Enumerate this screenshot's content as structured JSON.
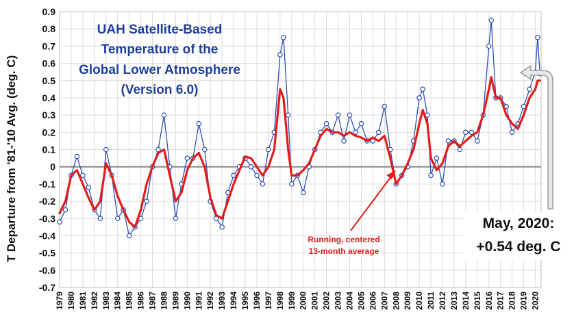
{
  "chart_data": {
    "type": "line",
    "title_lines": [
      "UAH Satellite-Based",
      "Temperature of the",
      "Global Lower Atmosphere",
      "(Version 6.0)"
    ],
    "ylabel": "T Departure from '81-'10 Avg. (deg. C)",
    "xlabel": "",
    "ylim": [
      -0.7,
      0.9
    ],
    "y_ticks": [
      "-0.7",
      "-0.6",
      "-0.5",
      "-0.4",
      "-0.3",
      "-0.2",
      "-0.1",
      "0",
      "0.1",
      "0.2",
      "0.3",
      "0.4",
      "0.5",
      "0.6",
      "0.7",
      "0.8",
      "0.9"
    ],
    "x_ticks": [
      "1979",
      "1980",
      "1981",
      "1982",
      "1983",
      "1984",
      "1985",
      "1986",
      "1987",
      "1988",
      "1989",
      "1990",
      "1991",
      "1992",
      "1993",
      "1994",
      "1995",
      "1996",
      "1997",
      "1998",
      "1999",
      "2000",
      "2001",
      "2002",
      "2003",
      "2004",
      "2005",
      "2006",
      "2007",
      "2008",
      "2009",
      "2010",
      "2011",
      "2012",
      "2013",
      "2014",
      "2015",
      "2016",
      "2017",
      "2018",
      "2019",
      "2020"
    ],
    "grid": true,
    "series": [
      {
        "name": "",
        "color": "#2a4fb5",
        "marker": "open-circle",
        "x": [
          1979.0,
          1979.5,
          1980.0,
          1980.5,
          1981.0,
          1981.5,
          1982.0,
          1982.5,
          1983.0,
          1983.5,
          1984.0,
          1984.5,
          1985.0,
          1985.5,
          1986.0,
          1986.5,
          1987.0,
          1987.5,
          1988.0,
          1988.5,
          1989.0,
          1989.5,
          1990.0,
          1990.5,
          1991.0,
          1991.5,
          1992.0,
          1992.5,
          1993.0,
          1993.5,
          1994.0,
          1994.5,
          1995.0,
          1995.5,
          1996.0,
          1996.5,
          1997.0,
          1997.5,
          1998.0,
          1998.3,
          1998.7,
          1999.0,
          1999.5,
          2000.0,
          2000.5,
          2001.0,
          2001.5,
          2002.0,
          2002.5,
          2003.0,
          2003.5,
          2004.0,
          2004.5,
          2005.0,
          2005.5,
          2006.0,
          2006.5,
          2007.0,
          2007.5,
          2008.0,
          2008.5,
          2009.0,
          2009.5,
          2010.0,
          2010.3,
          2010.7,
          2011.0,
          2011.5,
          2012.0,
          2012.5,
          2013.0,
          2013.5,
          2014.0,
          2014.5,
          2015.0,
          2015.5,
          2016.0,
          2016.2,
          2016.6,
          2017.0,
          2017.5,
          2018.0,
          2018.5,
          2019.0,
          2019.5,
          2020.0,
          2020.2,
          2020.4
        ],
        "y": [
          -0.32,
          -0.25,
          -0.05,
          0.06,
          -0.05,
          -0.12,
          -0.25,
          -0.3,
          0.1,
          -0.05,
          -0.3,
          -0.25,
          -0.4,
          -0.35,
          -0.3,
          -0.2,
          0.0,
          0.1,
          0.3,
          0.0,
          -0.3,
          -0.1,
          0.05,
          0.05,
          0.25,
          0.1,
          -0.2,
          -0.3,
          -0.35,
          -0.15,
          -0.05,
          0.0,
          0.05,
          0.0,
          -0.05,
          -0.1,
          0.1,
          0.2,
          0.65,
          0.75,
          0.3,
          -0.1,
          -0.05,
          -0.15,
          0.0,
          0.1,
          0.2,
          0.25,
          0.2,
          0.3,
          0.15,
          0.3,
          0.2,
          0.25,
          0.15,
          0.15,
          0.2,
          0.35,
          0.1,
          -0.1,
          -0.05,
          0.0,
          0.15,
          0.4,
          0.45,
          0.3,
          -0.05,
          0.05,
          -0.1,
          0.15,
          0.15,
          0.1,
          0.2,
          0.2,
          0.15,
          0.3,
          0.7,
          0.85,
          0.4,
          0.4,
          0.35,
          0.2,
          0.25,
          0.35,
          0.45,
          0.55,
          0.75,
          0.54
        ]
      },
      {
        "name": "Running, centered 13-month average",
        "color": "#e21b1b",
        "x": [
          1979.0,
          1979.5,
          1980.0,
          1980.5,
          1981.0,
          1981.5,
          1982.0,
          1982.5,
          1983.0,
          1983.5,
          1984.0,
          1984.5,
          1985.0,
          1985.5,
          1986.0,
          1986.5,
          1987.0,
          1987.5,
          1988.0,
          1988.5,
          1989.0,
          1989.5,
          1990.0,
          1990.5,
          1991.0,
          1991.5,
          1992.0,
          1992.5,
          1993.0,
          1993.5,
          1994.0,
          1994.5,
          1995.0,
          1995.5,
          1996.0,
          1996.5,
          1997.0,
          1997.5,
          1998.0,
          1998.3,
          1998.7,
          1999.0,
          1999.5,
          2000.0,
          2000.5,
          2001.0,
          2001.5,
          2002.0,
          2002.5,
          2003.0,
          2003.5,
          2004.0,
          2004.5,
          2005.0,
          2005.5,
          2006.0,
          2006.5,
          2007.0,
          2007.5,
          2008.0,
          2008.5,
          2009.0,
          2009.5,
          2010.0,
          2010.3,
          2010.7,
          2011.0,
          2011.5,
          2012.0,
          2012.5,
          2013.0,
          2013.5,
          2014.0,
          2014.5,
          2015.0,
          2015.5,
          2016.0,
          2016.2,
          2016.6,
          2017.0,
          2017.5,
          2018.0,
          2018.5,
          2019.0,
          2019.5,
          2020.0,
          2020.2,
          2020.4
        ],
        "y": [
          -0.27,
          -0.2,
          -0.05,
          -0.02,
          -0.1,
          -0.18,
          -0.25,
          -0.2,
          0.02,
          -0.05,
          -0.17,
          -0.25,
          -0.32,
          -0.35,
          -0.25,
          -0.1,
          0.0,
          0.08,
          0.1,
          -0.05,
          -0.2,
          -0.15,
          -0.02,
          0.05,
          0.08,
          0.0,
          -0.18,
          -0.28,
          -0.3,
          -0.2,
          -0.1,
          -0.02,
          0.06,
          0.05,
          0.0,
          -0.05,
          0.0,
          0.1,
          0.45,
          0.4,
          0.1,
          -0.05,
          -0.05,
          -0.02,
          0.02,
          0.1,
          0.18,
          0.22,
          0.2,
          0.2,
          0.18,
          0.2,
          0.18,
          0.17,
          0.15,
          0.17,
          0.15,
          0.18,
          0.05,
          -0.1,
          -0.05,
          0.02,
          0.1,
          0.25,
          0.33,
          0.25,
          0.05,
          -0.02,
          0.02,
          0.12,
          0.15,
          0.12,
          0.15,
          0.18,
          0.2,
          0.3,
          0.45,
          0.52,
          0.4,
          0.4,
          0.3,
          0.25,
          0.22,
          0.3,
          0.4,
          0.45,
          0.5,
          0.5
        ]
      }
    ],
    "annotations": {
      "running_note": [
        "Running, centered",
        "13-month average"
      ],
      "callout": [
        "May, 2020:",
        "+0.54 deg. C"
      ]
    }
  }
}
